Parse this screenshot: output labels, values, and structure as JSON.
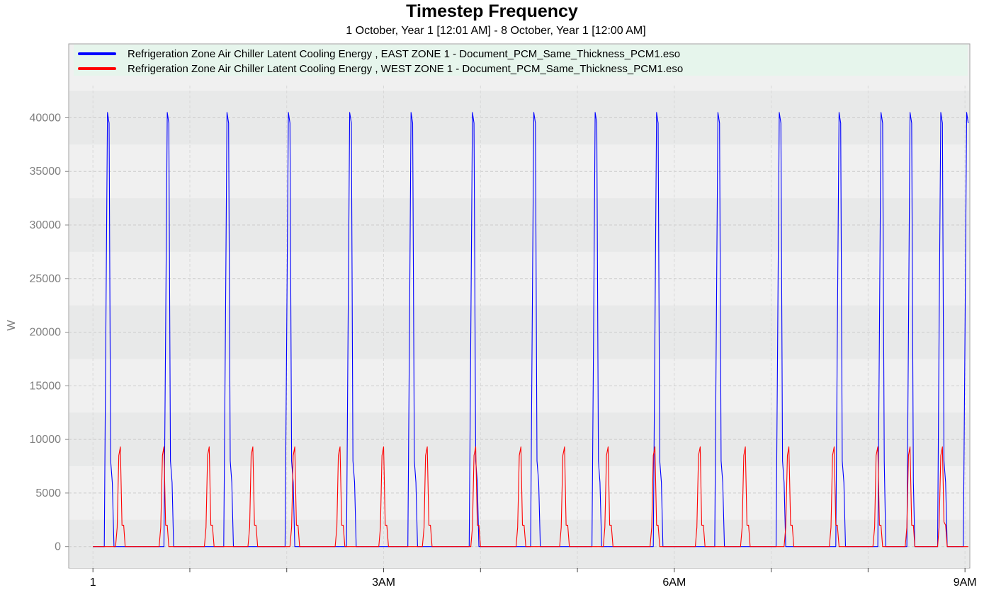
{
  "chart_data": {
    "type": "line",
    "title": "Timestep Frequency",
    "subtitle": "1 October, Year 1 [12:01 AM] - 8 October, Year 1 [12:00 AM]",
    "xlabel": "",
    "ylabel": "W",
    "ylim": [
      -2000,
      43000
    ],
    "yticks": [
      0,
      5000,
      10000,
      15000,
      20000,
      25000,
      30000,
      35000,
      40000
    ],
    "ytick_labels": [
      "0",
      "5000",
      "10000",
      "15000",
      "20000",
      "25000",
      "30000",
      "35000",
      "40000"
    ],
    "x_unit": "hours after 12:00 AM",
    "xlim": [
      -0.25,
      9.05
    ],
    "xticks": [
      0,
      3,
      6,
      9
    ],
    "xtick_labels": [
      "1",
      "3AM",
      "6AM",
      "9AM"
    ],
    "grid": true,
    "legend_position": "top",
    "series": [
      {
        "name": "Refrigeration Zone Air Chiller Latent Cooling Energy , EAST ZONE 1 - Document_PCM_Same_Thickness_PCM1.eso",
        "color": "#0000ff",
        "x": [
          0.0,
          0.117,
          0.133,
          0.15,
          0.167,
          0.183,
          0.2,
          0.217,
          0.233,
          0.733,
          0.75,
          0.767,
          0.783,
          0.8,
          0.817,
          0.833,
          0.85,
          1.35,
          1.367,
          1.383,
          1.4,
          1.417,
          1.433,
          1.45,
          1.467,
          1.983,
          2.0,
          2.017,
          2.033,
          2.05,
          2.067,
          2.083,
          2.1,
          2.617,
          2.633,
          2.65,
          2.667,
          2.683,
          2.7,
          2.717,
          2.733,
          3.25,
          3.267,
          3.283,
          3.3,
          3.317,
          3.333,
          3.35,
          3.367,
          3.883,
          3.9,
          3.917,
          3.933,
          3.95,
          3.967,
          3.983,
          4.0,
          4.517,
          4.533,
          4.55,
          4.567,
          4.583,
          4.6,
          4.617,
          4.633,
          5.15,
          5.167,
          5.183,
          5.2,
          5.217,
          5.233,
          5.25,
          5.267,
          5.783,
          5.8,
          5.817,
          5.833,
          5.85,
          5.867,
          5.883,
          5.9,
          6.417,
          6.433,
          6.45,
          6.467,
          6.483,
          6.5,
          6.517,
          6.533,
          7.05,
          7.067,
          7.083,
          7.1,
          7.117,
          7.133,
          7.15,
          7.167,
          7.667,
          7.683,
          7.7,
          7.717,
          7.733,
          7.75,
          7.767,
          7.783,
          8.1,
          8.117,
          8.133,
          8.15,
          8.167,
          8.183,
          8.2,
          8.4,
          8.417,
          8.433,
          8.45,
          8.467,
          8.483,
          8.5,
          8.717,
          8.733,
          8.75,
          8.767,
          8.783,
          8.8,
          8.817,
          8.833,
          8.983,
          9.0,
          9.017,
          9.033
        ],
        "y": [
          0,
          0,
          20000,
          40500,
          39500,
          8000,
          6000,
          0,
          0,
          0,
          20000,
          40500,
          39500,
          8000,
          6000,
          0,
          0,
          0,
          20000,
          40500,
          39500,
          8000,
          6000,
          0,
          0,
          0,
          20000,
          40500,
          39500,
          8000,
          6000,
          0,
          0,
          0,
          20000,
          40500,
          39500,
          8000,
          6000,
          0,
          0,
          0,
          20000,
          40500,
          39500,
          8000,
          6000,
          0,
          0,
          0,
          20000,
          40500,
          39500,
          8000,
          6000,
          0,
          0,
          0,
          20000,
          40500,
          39500,
          8000,
          6000,
          0,
          0,
          0,
          20000,
          40500,
          39500,
          8000,
          6000,
          0,
          0,
          0,
          20000,
          40500,
          39500,
          8000,
          6000,
          0,
          0,
          0,
          20000,
          40500,
          39500,
          8000,
          6000,
          0,
          0,
          0,
          20000,
          40500,
          39500,
          8000,
          6000,
          0,
          0,
          0,
          20000,
          40500,
          39500,
          8000,
          6000,
          0,
          0,
          0,
          20000,
          40500,
          39500,
          8000,
          0,
          0,
          0,
          20000,
          40500,
          39500,
          6000,
          0,
          0,
          0,
          20000,
          40500,
          39500,
          8000,
          6000,
          0,
          0,
          0,
          20000,
          40500,
          39500
        ]
      },
      {
        "name": "Refrigeration Zone Air Chiller Latent Cooling Energy , WEST ZONE 1 - Document_PCM_Same_Thickness_PCM1.eso",
        "color": "#ff0000",
        "x": [
          0.0,
          0.233,
          0.25,
          0.267,
          0.283,
          0.3,
          0.317,
          0.333,
          0.683,
          0.7,
          0.717,
          0.733,
          0.75,
          0.767,
          0.783,
          1.15,
          1.167,
          1.183,
          1.2,
          1.217,
          1.233,
          1.25,
          1.6,
          1.617,
          1.633,
          1.65,
          1.667,
          1.683,
          1.7,
          2.033,
          2.05,
          2.067,
          2.083,
          2.1,
          2.117,
          2.133,
          2.5,
          2.517,
          2.533,
          2.55,
          2.567,
          2.583,
          2.6,
          2.95,
          2.967,
          2.983,
          3.0,
          3.017,
          3.033,
          3.05,
          3.4,
          3.417,
          3.433,
          3.45,
          3.467,
          3.483,
          3.5,
          3.9,
          3.917,
          3.933,
          3.95,
          3.967,
          3.983,
          4.0,
          4.367,
          4.383,
          4.4,
          4.417,
          4.433,
          4.45,
          4.467,
          4.817,
          4.833,
          4.85,
          4.867,
          4.883,
          4.9,
          4.917,
          5.267,
          5.283,
          5.3,
          5.317,
          5.333,
          5.35,
          5.367,
          5.75,
          5.767,
          5.783,
          5.8,
          5.817,
          5.833,
          5.85,
          6.217,
          6.233,
          6.25,
          6.267,
          6.283,
          6.3,
          6.317,
          6.683,
          6.7,
          6.717,
          6.733,
          6.75,
          6.767,
          6.783,
          7.133,
          7.15,
          7.167,
          7.183,
          7.2,
          7.217,
          7.233,
          7.6,
          7.617,
          7.633,
          7.65,
          7.667,
          7.683,
          7.7,
          8.05,
          8.067,
          8.083,
          8.1,
          8.117,
          8.133,
          8.15,
          8.383,
          8.4,
          8.417,
          8.433,
          8.45,
          8.467,
          8.483,
          8.717,
          8.733,
          8.75,
          8.767,
          8.783,
          8.8,
          8.817,
          9.033
        ],
        "y": [
          0,
          0,
          1800,
          8500,
          9300,
          2000,
          2000,
          0,
          0,
          1800,
          8500,
          9300,
          2000,
          2000,
          0,
          0,
          1800,
          8500,
          9300,
          2000,
          2000,
          0,
          0,
          1800,
          8500,
          9300,
          2000,
          2000,
          0,
          0,
          1800,
          8500,
          9300,
          2000,
          2000,
          0,
          0,
          1800,
          8500,
          9300,
          2000,
          2000,
          0,
          0,
          1800,
          8500,
          9300,
          2000,
          2000,
          0,
          0,
          1800,
          8500,
          9300,
          2000,
          2000,
          0,
          0,
          1800,
          8500,
          9300,
          2000,
          2000,
          0,
          0,
          1800,
          8500,
          9300,
          2000,
          2000,
          0,
          0,
          1800,
          8500,
          9300,
          2000,
          2000,
          0,
          0,
          1800,
          8500,
          9300,
          2000,
          2000,
          0,
          0,
          1800,
          8500,
          9300,
          2000,
          2000,
          0,
          0,
          1800,
          8500,
          9300,
          2000,
          2000,
          0,
          0,
          1800,
          8500,
          9300,
          2000,
          2000,
          0,
          0,
          1800,
          8500,
          9300,
          2000,
          2000,
          0,
          0,
          1800,
          8500,
          9300,
          2000,
          2000,
          0,
          0,
          1800,
          8500,
          9300,
          2000,
          2000,
          0,
          0,
          1800,
          8500,
          9300,
          2000,
          2000,
          0,
          0,
          1800,
          8500,
          9300,
          2300,
          2000,
          0,
          0
        ]
      }
    ]
  }
}
